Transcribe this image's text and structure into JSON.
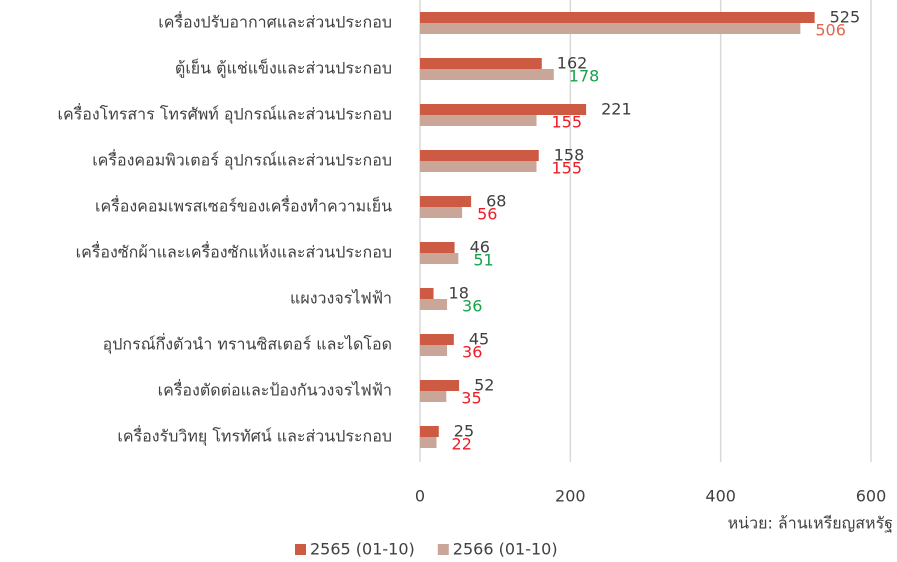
{
  "chart_data": {
    "type": "hbar",
    "categories": [
      "เครื่องปรับอากาศและส่วนประกอบ",
      "ตู้เย็น ตู้แช่แข็งและส่วนประกอบ",
      "เครื่องโทรสาร โทรศัพท์ อุปกรณ์และส่วนประกอบ",
      "เครื่องคอมพิวเตอร์ อุปกรณ์และส่วนประกอบ",
      "เครื่องคอมเพรสเซอร์ของเครื่องทำความเย็น",
      "เครื่องซักผ้าและเครื่องซักแห้งและส่วนประกอบ",
      "แผงวงจรไฟฟ้า",
      "อุปกรณ์กึ่งตัวนำ ทรานซิสเตอร์ และไดโอด",
      "เครื่องตัดต่อและป้องกันวงจรไฟฟ้า",
      "เครื่องรับวิทยุ โทรทัศน์ และส่วนประกอบ"
    ],
    "series": [
      {
        "name": "2565 (01-10)",
        "color": "#cd5a43",
        "values": [
          525,
          162,
          221,
          158,
          68,
          46,
          18,
          45,
          52,
          25
        ],
        "label_colors": [
          "#404040",
          "#404040",
          "#404040",
          "#404040",
          "#404040",
          "#404040",
          "#404040",
          "#404040",
          "#404040",
          "#404040"
        ]
      },
      {
        "name": "2566 (01-10)",
        "color": "#c9a698",
        "values": [
          506,
          178,
          155,
          155,
          56,
          51,
          36,
          36,
          35,
          22
        ],
        "label_colors": [
          "#e0674f",
          "#16a34a",
          "#ee1c25",
          "#ee1c25",
          "#ee1c25",
          "#16a34a",
          "#16a34a",
          "#ee1c25",
          "#ee1c25",
          "#ee1c25"
        ]
      }
    ],
    "xlim": [
      0,
      600
    ],
    "xticks": [
      0,
      200,
      400,
      600
    ],
    "grid": true,
    "unit_label": "หน่วย: ล้านเหรียญสหรัฐ",
    "legend": "bottom"
  }
}
